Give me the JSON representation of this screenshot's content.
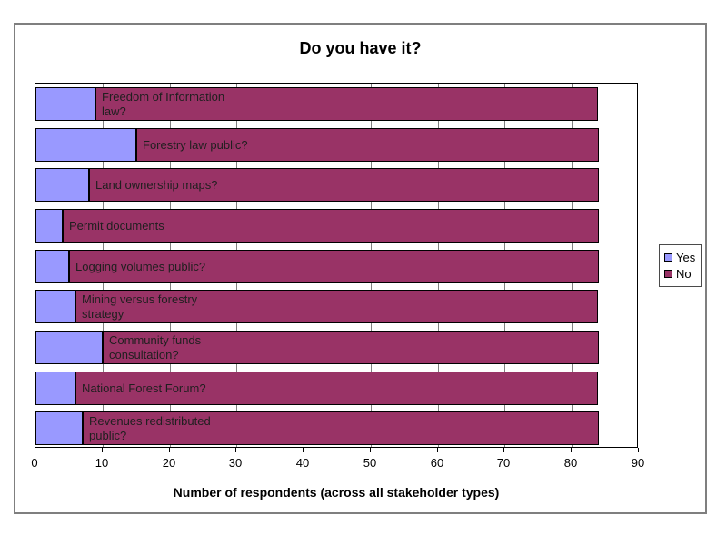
{
  "chart_data": {
    "type": "bar",
    "orientation": "horizontal",
    "stacked": true,
    "title": "Do you have it?",
    "xlabel": "Number of respondents (across all stakeholder types)",
    "categories": [
      "Freedom of Information\nlaw?",
      "Forestry law public?",
      "Land ownership maps?",
      "Permit documents",
      "Logging volumes public?",
      "Mining versus forestry\nstrategy",
      "Community funds\nconsultation?",
      "National Forest Forum?",
      "Revenues redistributed\npublic?"
    ],
    "series": [
      {
        "name": "Yes",
        "color": "#9999ff",
        "values": [
          9,
          15,
          8,
          4,
          5,
          6,
          10,
          6,
          7
        ]
      },
      {
        "name": "No",
        "color": "#993366",
        "values": [
          75,
          69,
          76,
          80,
          79,
          78,
          74,
          78,
          77
        ]
      }
    ],
    "totals": [
      84,
      84,
      84,
      84,
      84,
      84,
      84,
      84,
      84
    ],
    "xlim": [
      0,
      90
    ],
    "xticks": [
      0,
      10,
      20,
      30,
      40,
      50,
      60,
      70,
      80,
      90
    ],
    "grid": true,
    "legend_position": "right",
    "colors": {
      "grid": "#808080",
      "bar_border": "#000000",
      "frame_border": "#7f7f7f",
      "background": "#ffffff"
    }
  }
}
